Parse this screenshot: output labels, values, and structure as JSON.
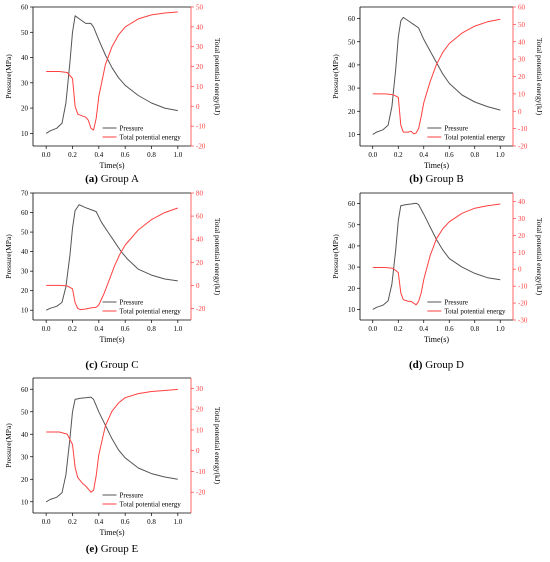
{
  "colors": {
    "pressure": "#555555",
    "energy": "#ff4040",
    "axis_left": "#000000",
    "axis_right": "#ff4040"
  },
  "chart_data": [
    {
      "type": "line",
      "caption_tag": "(a)",
      "caption": "Group A",
      "xlabel": "Time(s)",
      "ylabel_left": "Pressure(MPa)",
      "ylabel_right": "Total potential energy(kJ)",
      "xlim": [
        -0.1,
        1.1
      ],
      "xticks": [
        0.0,
        0.2,
        0.4,
        0.6,
        0.8,
        1.0
      ],
      "xtick_labels": [
        "0.0",
        "0.2",
        "0.4",
        "0.6",
        "0.8",
        "1.0"
      ],
      "ylim_left": [
        5,
        60
      ],
      "yticks_left": [
        10,
        20,
        30,
        40,
        50,
        60
      ],
      "ylim_right": [
        -20,
        50
      ],
      "yticks_right": [
        -20,
        -10,
        0,
        10,
        20,
        30,
        40,
        50
      ],
      "grid": false,
      "legend": "bottom-center",
      "series": [
        {
          "name": "Pressure",
          "axis": "left",
          "x": [
            0.0,
            0.03,
            0.08,
            0.12,
            0.15,
            0.18,
            0.2,
            0.22,
            0.26,
            0.3,
            0.34,
            0.36,
            0.4,
            0.45,
            0.5,
            0.55,
            0.6,
            0.7,
            0.8,
            0.9,
            1.0
          ],
          "y": [
            10,
            11,
            12,
            14,
            22,
            38,
            50,
            56.5,
            55,
            53.5,
            53.5,
            52,
            47,
            41,
            36,
            32,
            29,
            25,
            22,
            20,
            19
          ]
        },
        {
          "name": "Total potential energy",
          "axis": "right",
          "x": [
            0.0,
            0.1,
            0.16,
            0.2,
            0.22,
            0.24,
            0.28,
            0.3,
            0.32,
            0.34,
            0.36,
            0.38,
            0.4,
            0.45,
            0.5,
            0.55,
            0.6,
            0.7,
            0.8,
            0.9,
            1.0
          ],
          "y": [
            17.5,
            17.5,
            17,
            14,
            0,
            -4,
            -5,
            -5.5,
            -7,
            -11,
            -12,
            -6,
            5,
            21,
            30,
            36,
            40,
            44,
            46,
            47,
            47.5
          ]
        }
      ]
    },
    {
      "type": "line",
      "caption_tag": "(b)",
      "caption": "Group B",
      "xlabel": "Time(s)",
      "ylabel_left": "Pressure(MPa)",
      "ylabel_right": "Total potential energy(kJ)",
      "xlim": [
        -0.1,
        1.1
      ],
      "xticks": [
        0.0,
        0.2,
        0.4,
        0.6,
        0.8,
        1.0
      ],
      "xtick_labels": [
        "0.0",
        "0.2",
        "0.4",
        "0.6",
        "0.8",
        "1.0"
      ],
      "ylim_left": [
        5,
        65
      ],
      "yticks_left": [
        10,
        20,
        30,
        40,
        50,
        60
      ],
      "ylim_right": [
        -20,
        60
      ],
      "yticks_right": [
        -20,
        -10,
        0,
        10,
        20,
        30,
        40,
        50,
        60
      ],
      "grid": false,
      "legend": "bottom-center",
      "series": [
        {
          "name": "Pressure",
          "axis": "left",
          "x": [
            0.0,
            0.03,
            0.08,
            0.12,
            0.15,
            0.18,
            0.2,
            0.22,
            0.24,
            0.28,
            0.32,
            0.36,
            0.4,
            0.45,
            0.5,
            0.55,
            0.6,
            0.7,
            0.8,
            0.9,
            1.0
          ],
          "y": [
            10,
            11,
            12,
            14,
            22,
            38,
            52,
            59,
            60.5,
            59,
            57.5,
            56,
            51,
            46,
            41,
            36,
            32,
            27,
            24,
            22,
            20.5
          ]
        },
        {
          "name": "Total potential energy",
          "axis": "right",
          "x": [
            0.0,
            0.1,
            0.16,
            0.2,
            0.22,
            0.24,
            0.28,
            0.3,
            0.32,
            0.34,
            0.36,
            0.38,
            0.4,
            0.45,
            0.5,
            0.55,
            0.6,
            0.7,
            0.8,
            0.9,
            1.0
          ],
          "y": [
            10,
            10,
            9.5,
            8,
            -8,
            -12,
            -12,
            -11.5,
            -13,
            -12.5,
            -10,
            -3,
            5,
            17,
            27,
            34,
            39,
            45,
            49,
            51.5,
            53
          ]
        }
      ]
    },
    {
      "type": "line",
      "caption_tag": "(c)",
      "caption": "Group C",
      "xlabel": "Time(s)",
      "ylabel_left": "Pressure(MPa)",
      "ylabel_right": "Total potential energy(kJ)",
      "xlim": [
        -0.1,
        1.1
      ],
      "xticks": [
        0.0,
        0.2,
        0.4,
        0.6,
        0.8,
        1.0
      ],
      "xtick_labels": [
        "0.0",
        "0.2",
        "0.4",
        "0.6",
        "0.8",
        "1.0"
      ],
      "ylim_left": [
        5,
        70
      ],
      "yticks_left": [
        10,
        20,
        30,
        40,
        50,
        60,
        70
      ],
      "ylim_right": [
        -30,
        80
      ],
      "yticks_right": [
        -20,
        0,
        20,
        40,
        60,
        80
      ],
      "grid": false,
      "legend": "bottom-center",
      "series": [
        {
          "name": "Pressure",
          "axis": "left",
          "x": [
            0.0,
            0.03,
            0.08,
            0.12,
            0.15,
            0.18,
            0.2,
            0.22,
            0.25,
            0.3,
            0.34,
            0.38,
            0.42,
            0.47,
            0.52,
            0.57,
            0.62,
            0.7,
            0.8,
            0.9,
            1.0
          ],
          "y": [
            10,
            11,
            12,
            14,
            22,
            38,
            52,
            61,
            64,
            62.5,
            61.5,
            60.5,
            55,
            50,
            45,
            40,
            36,
            31,
            28,
            26,
            25
          ]
        },
        {
          "name": "Total potential energy",
          "axis": "right",
          "x": [
            0.0,
            0.1,
            0.16,
            0.2,
            0.22,
            0.24,
            0.26,
            0.3,
            0.34,
            0.38,
            0.4,
            0.44,
            0.48,
            0.52,
            0.56,
            0.6,
            0.7,
            0.8,
            0.9,
            1.0
          ],
          "y": [
            0,
            0,
            -0.5,
            -3,
            -15,
            -20,
            -21,
            -20.5,
            -19.5,
            -19,
            -17,
            -7,
            5,
            17,
            27,
            35,
            48,
            57,
            63,
            67
          ]
        }
      ]
    },
    {
      "type": "line",
      "caption_tag": "(d)",
      "caption": "Group D",
      "xlabel": "Time(s)",
      "ylabel_left": "Pressure(MPa)",
      "ylabel_right": "Total potential energy(kJ)",
      "xlim": [
        -0.1,
        1.1
      ],
      "xticks": [
        0.0,
        0.2,
        0.4,
        0.6,
        0.8,
        1.0
      ],
      "xtick_labels": [
        "0.0",
        "0.2",
        "0.4",
        "0.6",
        "0.8",
        "1.0"
      ],
      "ylim_left": [
        5,
        65
      ],
      "yticks_left": [
        10,
        20,
        30,
        40,
        50,
        60
      ],
      "ylim_right": [
        -30,
        45
      ],
      "yticks_right": [
        -30,
        -20,
        -10,
        0,
        10,
        20,
        30,
        40
      ],
      "grid": false,
      "legend": "bottom-center",
      "series": [
        {
          "name": "Pressure",
          "axis": "left",
          "x": [
            0.0,
            0.03,
            0.08,
            0.12,
            0.15,
            0.18,
            0.2,
            0.22,
            0.26,
            0.3,
            0.34,
            0.36,
            0.4,
            0.45,
            0.5,
            0.55,
            0.6,
            0.7,
            0.8,
            0.9,
            1.0
          ],
          "y": [
            10,
            11,
            12,
            14,
            22,
            38,
            52,
            59,
            59.5,
            59.8,
            60.2,
            59.5,
            55,
            49,
            43,
            38,
            34,
            30,
            27,
            25,
            24
          ]
        },
        {
          "name": "Total potential energy",
          "axis": "right",
          "x": [
            0.0,
            0.1,
            0.16,
            0.2,
            0.22,
            0.24,
            0.28,
            0.3,
            0.32,
            0.34,
            0.36,
            0.38,
            0.4,
            0.45,
            0.5,
            0.55,
            0.6,
            0.7,
            0.8,
            0.9,
            1.0
          ],
          "y": [
            1,
            1,
            0.5,
            -2,
            -14,
            -18,
            -19,
            -19,
            -20,
            -21,
            -19,
            -14,
            -6,
            8,
            18,
            24,
            28,
            33,
            36,
            37.5,
            38.5
          ]
        }
      ]
    },
    {
      "type": "line",
      "caption_tag": "(e)",
      "caption": "Group E",
      "xlabel": "Time(s)",
      "ylabel_left": "Pressure(MPa)",
      "ylabel_right": "Total potential energy(kJ)",
      "xlim": [
        -0.1,
        1.1
      ],
      "xticks": [
        0.0,
        0.2,
        0.4,
        0.6,
        0.8,
        1.0
      ],
      "xtick_labels": [
        "0.0",
        "0.2",
        "0.4",
        "0.6",
        "0.8",
        "1.0"
      ],
      "ylim_left": [
        5,
        65
      ],
      "yticks_left": [
        10,
        20,
        30,
        40,
        50,
        60
      ],
      "ylim_right": [
        -30,
        35
      ],
      "yticks_right": [
        -20,
        -10,
        0,
        10,
        20,
        30
      ],
      "grid": false,
      "legend": "bottom-center",
      "series": [
        {
          "name": "Pressure",
          "axis": "left",
          "x": [
            0.0,
            0.03,
            0.08,
            0.12,
            0.15,
            0.18,
            0.2,
            0.22,
            0.26,
            0.3,
            0.34,
            0.36,
            0.4,
            0.45,
            0.5,
            0.55,
            0.6,
            0.7,
            0.8,
            0.9,
            1.0
          ],
          "y": [
            10,
            11,
            12,
            14,
            22,
            38,
            50,
            55.5,
            56,
            56.2,
            56.5,
            55.5,
            50,
            44,
            38,
            33,
            29.5,
            25,
            22.5,
            21,
            20
          ]
        },
        {
          "name": "Total potential energy",
          "axis": "right",
          "x": [
            0.0,
            0.1,
            0.16,
            0.2,
            0.22,
            0.24,
            0.28,
            0.3,
            0.32,
            0.34,
            0.36,
            0.38,
            0.4,
            0.45,
            0.5,
            0.55,
            0.6,
            0.7,
            0.8,
            0.9,
            1.0
          ],
          "y": [
            9,
            9,
            8,
            3,
            -8,
            -13,
            -16,
            -17,
            -18.5,
            -20,
            -19,
            -12,
            -2,
            12,
            19,
            23,
            25.5,
            27.5,
            28.5,
            29,
            29.5
          ]
        }
      ]
    }
  ]
}
